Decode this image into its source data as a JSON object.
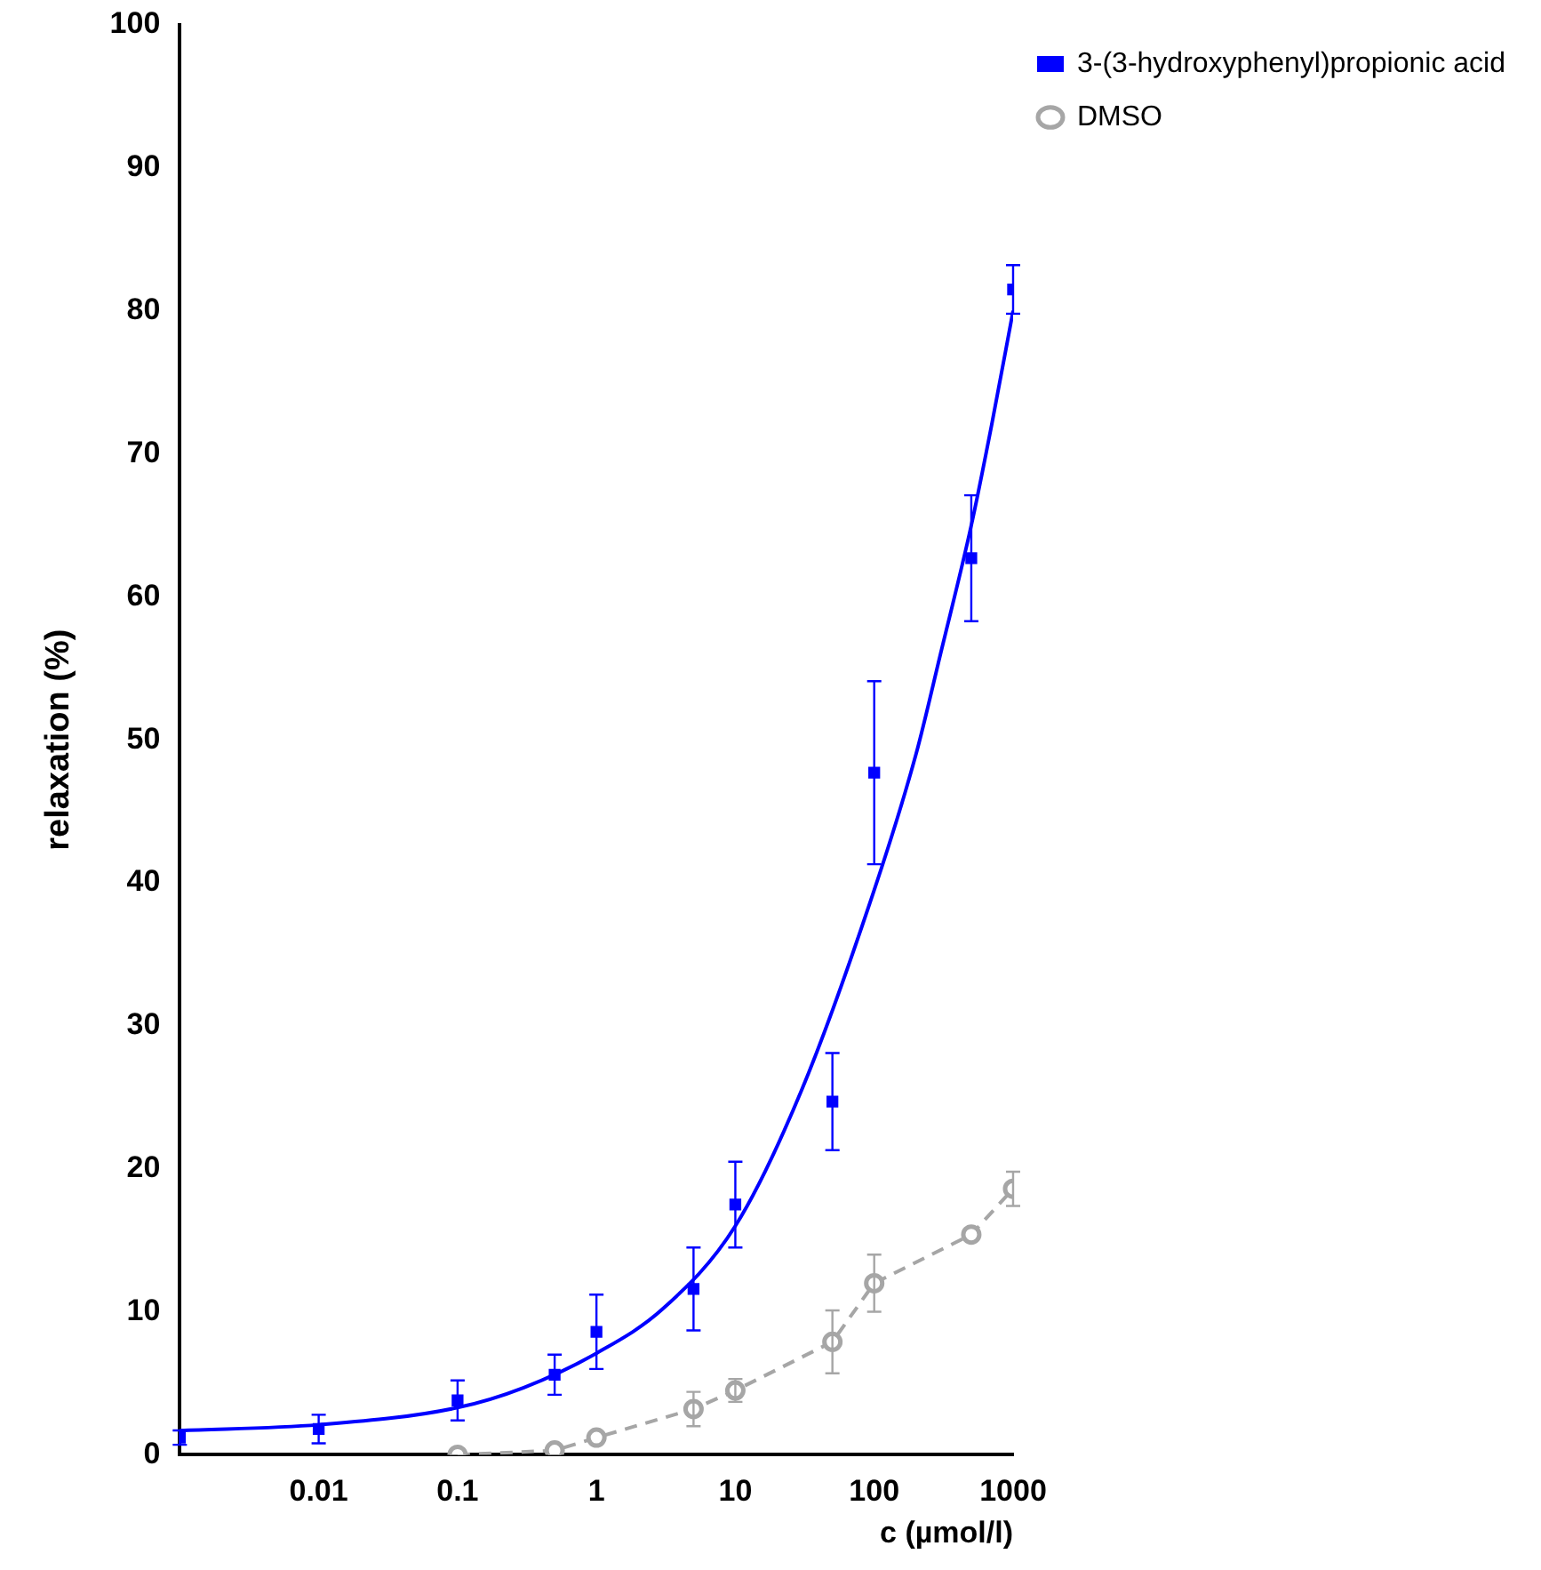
{
  "chart_data": {
    "type": "scatter",
    "xlabel": "c (µmol/l)",
    "ylabel": "relaxation (%)",
    "log": "x",
    "xlim": [
      0.001,
      1000
    ],
    "xticks": [
      0.01,
      0.1,
      1,
      10,
      100,
      1000
    ],
    "ylim": [
      0,
      100
    ],
    "yticks": [
      0,
      10,
      20,
      30,
      40,
      50,
      60,
      70,
      80,
      90,
      100
    ],
    "grid": false,
    "legend": "top right",
    "series": [
      {
        "type": "line",
        "color": "#0000ff",
        "marker": "none",
        "line_style": "solid",
        "x": [
          0.001,
          0.01,
          0.1,
          0.3,
          1,
          3,
          10,
          30,
          100,
          200,
          300,
          500,
          700,
          1000
        ],
        "values": [
          1.7,
          2.1,
          3.3,
          4.7,
          7.1,
          10.2,
          16.0,
          25.5,
          39.5,
          49,
          56,
          65,
          72,
          80
        ]
      },
      {
        "name": "3-(3-hydroxyphenyl)propionic acid",
        "type": "scatter",
        "color": "#0000ff",
        "marker": "square",
        "x": [
          0.001,
          0.01,
          0.1,
          0.5,
          1,
          5,
          10,
          50,
          100,
          500,
          1000
        ],
        "values": [
          1.2,
          1.8,
          3.8,
          5.6,
          8.6,
          11.6,
          17.5,
          24.7,
          47.7,
          62.7,
          81.5
        ],
        "errors": [
          0.5,
          1.0,
          1.4,
          1.4,
          2.6,
          2.9,
          3.0,
          3.4,
          6.4,
          4.4,
          1.7
        ]
      },
      {
        "name": "DMSO",
        "type": "line",
        "color": "#a6a6a6",
        "marker": "circle",
        "line_style": "dashed",
        "x": [
          0.1,
          0.5,
          1,
          5,
          10,
          50,
          100,
          500,
          1000
        ],
        "values": [
          0,
          0.3,
          1.2,
          3.2,
          4.5,
          7.9,
          12.0,
          15.4,
          18.6
        ],
        "errors": [
          null,
          null,
          null,
          1.2,
          0.8,
          2.2,
          2.0,
          null,
          1.2
        ]
      }
    ]
  }
}
